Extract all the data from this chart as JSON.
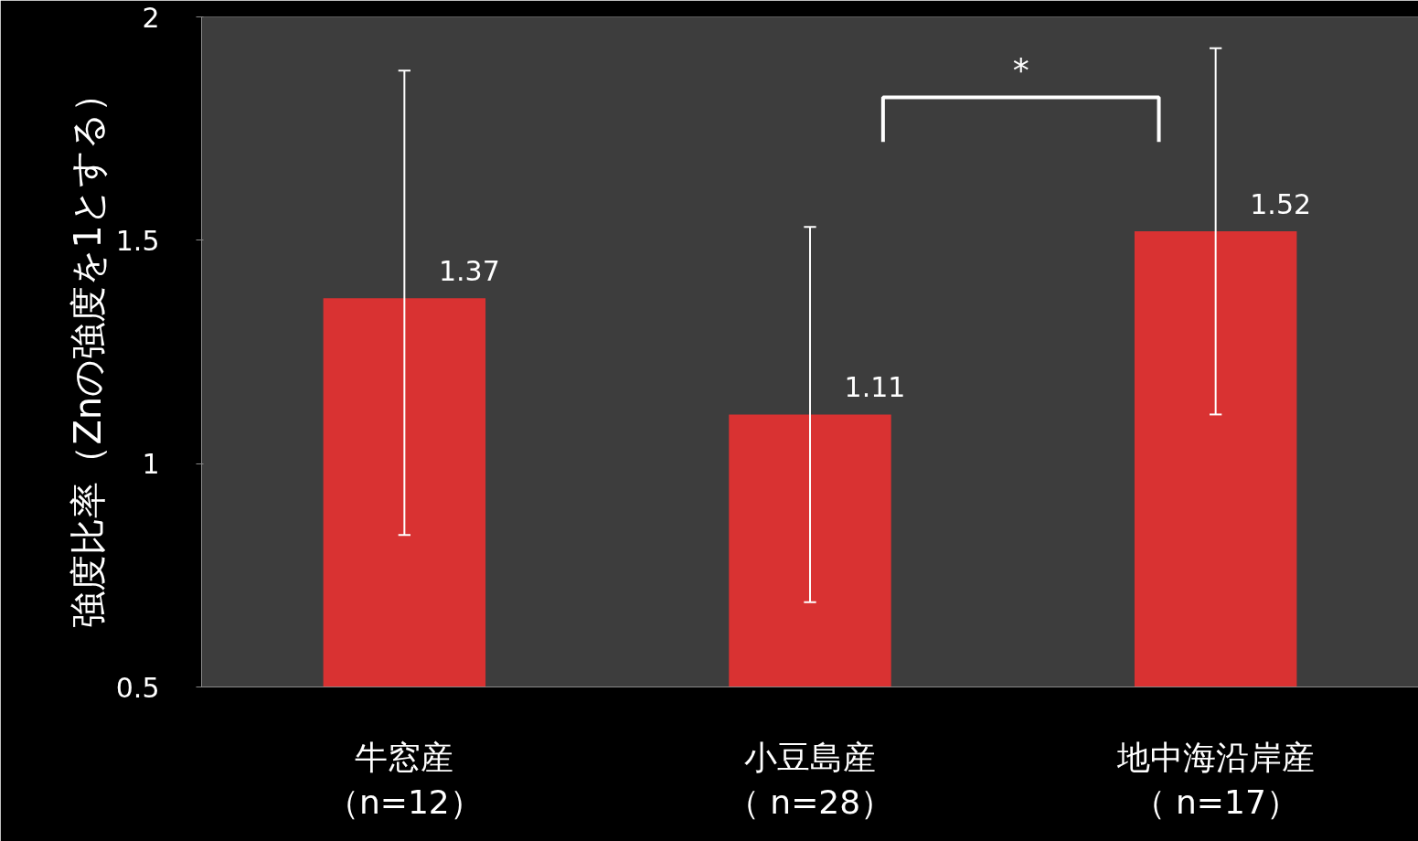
{
  "chart_data": {
    "type": "bar",
    "ylabel": "強度比率（Znの強度を1とする）",
    "categories": [
      "牛窓産（n=12）",
      "小豆島産（ n=28）",
      "地中海沿岸産（ n=17）"
    ],
    "values": [
      1.37,
      1.11,
      1.52
    ],
    "errors": [
      [
        0.84,
        1.88
      ],
      [
        0.69,
        1.53
      ],
      [
        1.11,
        1.93
      ]
    ],
    "color": "#d93232",
    "ylim": [
      0.5,
      2
    ],
    "yticks": [
      0.5,
      1,
      1.5,
      2
    ],
    "data_labels": true,
    "annotations": [
      "*"
    ],
    "grid": false
  }
}
